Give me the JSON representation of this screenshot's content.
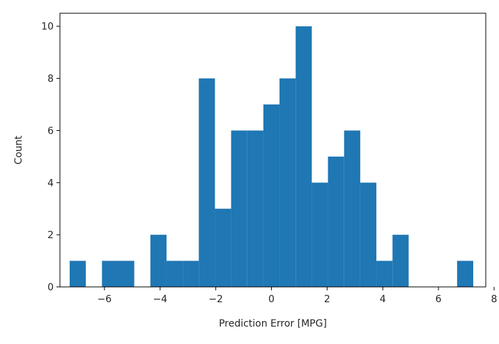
{
  "chart_data": {
    "type": "bar",
    "subtype": "histogram",
    "title": "",
    "xlabel": "Prediction Error [MPG]",
    "ylabel": "Count",
    "xlim": [
      -7.6,
      7.7
    ],
    "ylim": [
      0,
      10.5
    ],
    "xticks": [
      -6,
      -4,
      -2,
      0,
      2,
      4,
      6,
      8
    ],
    "xtick_labels": [
      "−6",
      "−4",
      "−2",
      "0",
      "2",
      "4",
      "6",
      "8"
    ],
    "yticks": [
      0,
      2,
      4,
      6,
      8,
      10
    ],
    "ytick_labels": [
      "0",
      "2",
      "4",
      "6",
      "8",
      "10"
    ],
    "grid": false,
    "bar_color": "#1f77b4",
    "bin_edges": [
      -7.25,
      -6.67,
      -6.09,
      -5.51,
      -4.93,
      -4.35,
      -3.77,
      -3.19,
      -2.61,
      -2.03,
      -1.45,
      -0.87,
      -0.29,
      0.29,
      0.87,
      1.45,
      2.03,
      2.61,
      3.19,
      3.77,
      4.35,
      4.93,
      5.51,
      6.09,
      6.67,
      7.25
    ],
    "counts": [
      1,
      0,
      1,
      1,
      0,
      2,
      1,
      1,
      8,
      3,
      6,
      6,
      7,
      8,
      10,
      4,
      5,
      6,
      4,
      1,
      2,
      0,
      0,
      0,
      1
    ]
  }
}
